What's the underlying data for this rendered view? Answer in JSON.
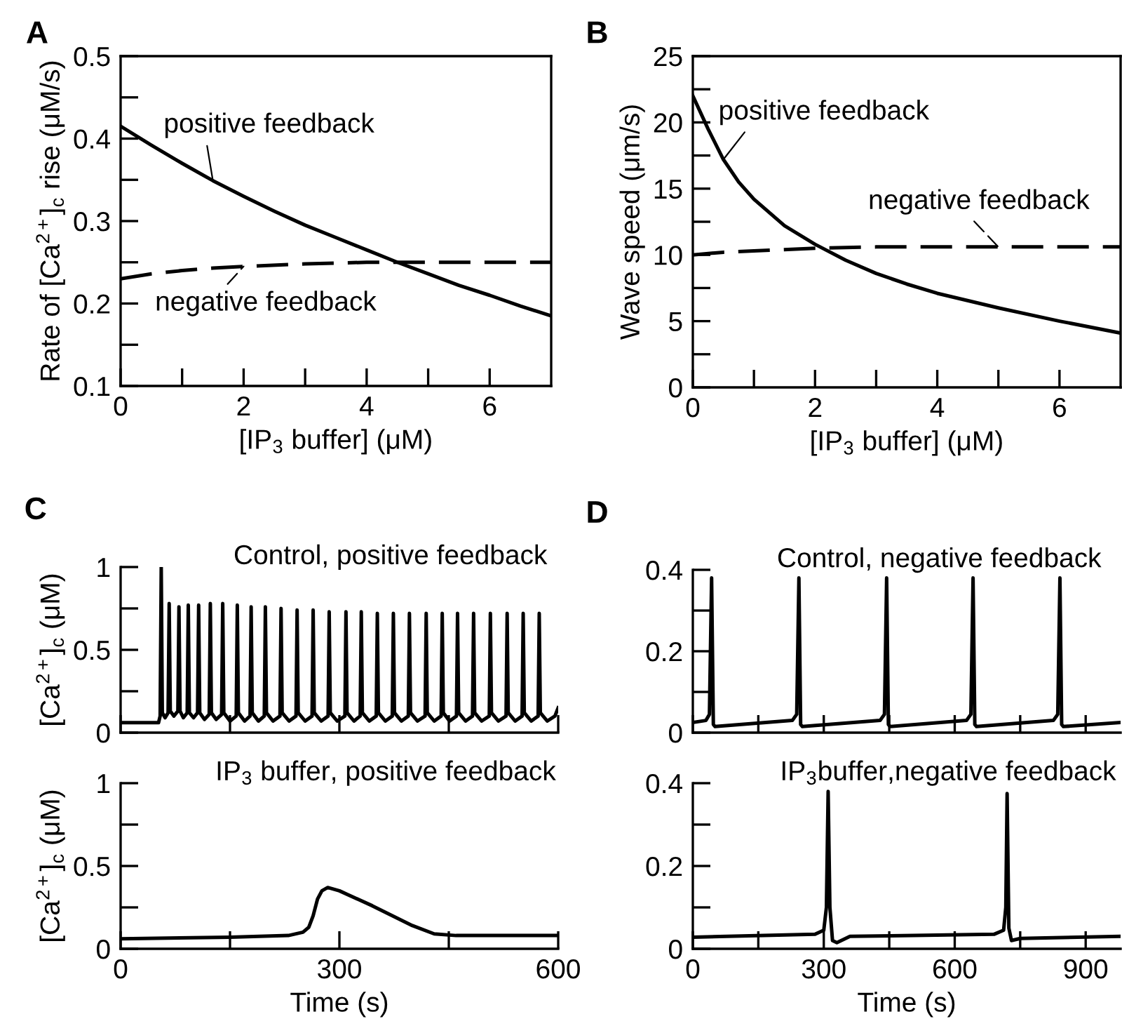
{
  "chart_data": [
    {
      "type": "line",
      "title": "A",
      "xlabel": "[IP$_{3}$ buffer] (μM)",
      "ylabel": "Rate of [Ca$^{2+}$]$_{c}$ rise (μM/s)",
      "xlim": [
        0,
        7
      ],
      "ylim": [
        0.1,
        0.5
      ],
      "xticks": [
        0,
        {
          "value": 1,
          "label": null
        },
        2,
        {
          "value": 3,
          "label": null
        },
        4,
        {
          "value": 5,
          "label": null
        },
        6
      ],
      "yticks": [
        0.1,
        {
          "value": 0.15,
          "label": null
        },
        0.2,
        {
          "value": 0.25,
          "label": null
        },
        0.3,
        {
          "value": 0.35,
          "label": null
        },
        0.4,
        {
          "value": 0.45,
          "label": null
        },
        0.5
      ],
      "series": [
        {
          "name": "positive feedback",
          "color": "#000000",
          "line_style": "solid",
          "x": [
            0,
            0.5,
            1,
            1.5,
            2,
            2.5,
            3,
            3.5,
            4,
            4.5,
            5,
            5.5,
            6,
            6.5,
            7
          ],
          "values": [
            0.415,
            0.392,
            0.37,
            0.349,
            0.33,
            0.312,
            0.295,
            0.28,
            0.265,
            0.25,
            0.236,
            0.222,
            0.21,
            0.197,
            0.185
          ]
        },
        {
          "name": "negative feedback",
          "color": "#000000",
          "line_style": "dashed",
          "x": [
            0,
            0.5,
            1,
            1.5,
            2,
            3,
            4,
            5,
            6,
            7
          ],
          "values": [
            0.23,
            0.236,
            0.24,
            0.243,
            0.245,
            0.248,
            0.25,
            0.25,
            0.25,
            0.25
          ]
        }
      ]
    },
    {
      "type": "line",
      "title": "B",
      "xlabel": "[IP$_{3}$ buffer] (μM)",
      "ylabel": "Wave speed (μm/s)",
      "xlim": [
        0,
        7
      ],
      "ylim": [
        0,
        25
      ],
      "xticks": [
        0,
        {
          "value": 1,
          "label": null
        },
        2,
        {
          "value": 3,
          "label": null
        },
        4,
        {
          "value": 5,
          "label": null
        },
        6
      ],
      "yticks": [
        0,
        {
          "value": 2.5,
          "label": null
        },
        5,
        {
          "value": 7.5,
          "label": null
        },
        10,
        {
          "value": 12.5,
          "label": null
        },
        15,
        {
          "value": 17.5,
          "label": null
        },
        20,
        {
          "value": 22.5,
          "label": null
        },
        25
      ],
      "series": [
        {
          "name": "positive feedback",
          "color": "#000000",
          "line_style": "solid",
          "x": [
            0,
            0.25,
            0.5,
            0.75,
            1,
            1.5,
            2,
            2.5,
            3,
            3.5,
            4,
            5,
            6,
            7
          ],
          "values": [
            22,
            19.5,
            17.2,
            15.5,
            14.2,
            12.2,
            10.8,
            9.6,
            8.6,
            7.8,
            7.1,
            6,
            5,
            4.1
          ]
        },
        {
          "name": "negative feedback",
          "color": "#000000",
          "line_style": "dashed",
          "x": [
            0,
            0.5,
            1,
            2,
            3,
            4,
            5,
            6,
            7
          ],
          "values": [
            10,
            10.2,
            10.3,
            10.5,
            10.6,
            10.6,
            10.6,
            10.6,
            10.6
          ]
        }
      ]
    },
    {
      "type": "line",
      "title": "C",
      "ylabel": "[Ca$^{2+}$]$_{c}$ (μM)",
      "annotations": [
        "Control, positive feedback"
      ],
      "tick_labels": "y",
      "xlim": [
        0,
        600
      ],
      "ylim": [
        0,
        1
      ],
      "xticks": [
        0,
        {
          "value": 150,
          "label": null
        },
        300,
        {
          "value": 450,
          "label": null
        },
        600
      ],
      "yticks": [
        0,
        {
          "value": 0.25,
          "label": null
        },
        0.5,
        {
          "value": 0.75,
          "label": null
        },
        1
      ],
      "series": [
        {
          "color": "#000000",
          "line_style": "solid",
          "x": [
            0,
            52,
            54.2,
            55.7,
            57.2,
            61,
            65.1,
            66.6,
            68.1,
            73,
            78.5,
            80,
            81.5,
            86,
            91.3,
            92.8,
            94.3,
            100,
            105.5,
            107,
            108.5,
            115,
            121.5,
            123,
            124.5,
            131,
            138.5,
            140,
            141.5,
            150,
            158.5,
            160,
            161.5,
            170,
            177.5,
            179,
            180.5,
            189,
            197,
            198.5,
            200,
            209,
            218.5,
            220,
            221.5,
            231,
            240.5,
            242,
            243.5,
            253,
            262.5,
            264,
            265.5,
            275,
            284.5,
            286,
            287.5,
            297,
            307.5,
            309,
            310.5,
            320,
            328.5,
            330,
            331.5,
            341,
            350.5,
            352,
            353.5,
            363,
            372.5,
            374,
            375.5,
            385,
            394.5,
            396,
            397.5,
            407,
            417.5,
            419,
            420.5,
            430,
            439.5,
            441,
            442.5,
            451,
            460.5,
            462,
            463.5,
            473,
            482.5,
            484,
            485.5,
            495,
            505.5,
            507,
            508.5,
            518,
            528.5,
            530,
            531.5,
            541,
            550.5,
            552,
            553.5,
            563,
            572.5,
            574,
            575.5,
            585,
            595.5,
            600
          ],
          "values": [
            0.06,
            0.06,
            0.1,
            1.0,
            0.12,
            0.09,
            0.12,
            0.78,
            0.13,
            0.1,
            0.13,
            0.76,
            0.13,
            0.09,
            0.12,
            0.77,
            0.12,
            0.09,
            0.12,
            0.77,
            0.12,
            0.08,
            0.11,
            0.78,
            0.12,
            0.08,
            0.11,
            0.78,
            0.12,
            0.07,
            0.1,
            0.77,
            0.12,
            0.07,
            0.1,
            0.76,
            0.12,
            0.07,
            0.1,
            0.76,
            0.12,
            0.07,
            0.1,
            0.75,
            0.12,
            0.07,
            0.1,
            0.74,
            0.12,
            0.07,
            0.1,
            0.74,
            0.12,
            0.07,
            0.1,
            0.73,
            0.12,
            0.07,
            0.1,
            0.73,
            0.12,
            0.07,
            0.1,
            0.73,
            0.12,
            0.07,
            0.1,
            0.72,
            0.12,
            0.07,
            0.1,
            0.72,
            0.12,
            0.07,
            0.1,
            0.72,
            0.12,
            0.07,
            0.1,
            0.72,
            0.12,
            0.07,
            0.1,
            0.72,
            0.12,
            0.07,
            0.1,
            0.72,
            0.12,
            0.07,
            0.1,
            0.72,
            0.12,
            0.07,
            0.1,
            0.72,
            0.12,
            0.07,
            0.1,
            0.72,
            0.12,
            0.07,
            0.1,
            0.72,
            0.12,
            0.07,
            0.1,
            0.72,
            0.12,
            0.07,
            0.1,
            0.15
          ]
        }
      ]
    },
    {
      "type": "line",
      "title": "D",
      "annotations": [
        "Control, negative feedback"
      ],
      "tick_labels": "y",
      "xlim": [
        0,
        980
      ],
      "ylim": [
        0,
        0.4
      ],
      "xticks": [
        0,
        {
          "value": 150,
          "label": null
        },
        300,
        {
          "value": 450,
          "label": null
        },
        600,
        {
          "value": 750,
          "label": null
        },
        900
      ],
      "yticks": [
        0,
        {
          "value": 0.1,
          "label": null
        },
        0.2,
        {
          "value": 0.3,
          "label": null
        },
        0.4
      ],
      "series": [
        {
          "color": "#000000",
          "line_style": "solid",
          "x": [
            0,
            30,
            38,
            43,
            47,
            51,
            228,
            238,
            243,
            247,
            251,
            429,
            439,
            444,
            448,
            452,
            627,
            637,
            642,
            646,
            650,
            826,
            836,
            841,
            845,
            849,
            980
          ],
          "values": [
            0.025,
            0.03,
            0.045,
            0.38,
            0.02,
            0.015,
            0.03,
            0.045,
            0.38,
            0.02,
            0.015,
            0.03,
            0.045,
            0.38,
            0.02,
            0.015,
            0.03,
            0.045,
            0.38,
            0.02,
            0.015,
            0.03,
            0.045,
            0.38,
            0.02,
            0.015,
            0.025
          ]
        }
      ]
    },
    {
      "type": "line",
      "xlabel": "Time (s)",
      "ylabel": "[Ca$^{2+}$]$_{c}$ (μM)",
      "annotations": [
        "IP$_{3}$ buffer, positive feedback"
      ],
      "xlim": [
        0,
        600
      ],
      "ylim": [
        0,
        1
      ],
      "xticks": [
        0,
        {
          "value": 150,
          "label": null
        },
        300,
        {
          "value": 450,
          "label": null
        },
        600
      ],
      "yticks": [
        0,
        {
          "value": 0.25,
          "label": null
        },
        0.5,
        {
          "value": 0.75,
          "label": null
        },
        1
      ],
      "series": [
        {
          "color": "#000000",
          "line_style": "solid",
          "x": [
            0,
            150,
            230,
            250,
            258,
            264,
            270,
            276,
            284,
            300,
            345,
            400,
            430,
            460,
            600
          ],
          "values": [
            0.06,
            0.07,
            0.08,
            0.1,
            0.13,
            0.2,
            0.3,
            0.35,
            0.37,
            0.35,
            0.26,
            0.14,
            0.09,
            0.08,
            0.08
          ]
        }
      ]
    },
    {
      "type": "line",
      "xlabel": "Time (s)",
      "annotations": [
        "IP$_{3}$buffer,negative feedback"
      ],
      "xlim": [
        0,
        980
      ],
      "ylim": [
        0,
        0.4
      ],
      "xticks": [
        0,
        {
          "value": 150,
          "label": null
        },
        300,
        {
          "value": 450,
          "label": null
        },
        600,
        {
          "value": 750,
          "label": null
        },
        900
      ],
      "yticks": [
        0,
        {
          "value": 0.1,
          "label": null
        },
        0.2,
        {
          "value": 0.3,
          "label": null
        },
        0.4
      ],
      "series": [
        {
          "color": "#000000",
          "line_style": "solid",
          "x": [
            0,
            280,
            300,
            306,
            310,
            314,
            320,
            330,
            360,
            690,
            712,
            717,
            720,
            724,
            730,
            750,
            980
          ],
          "values": [
            0.028,
            0.035,
            0.045,
            0.1,
            0.38,
            0.1,
            0.02,
            0.015,
            0.03,
            0.035,
            0.045,
            0.1,
            0.375,
            0.05,
            0.02,
            0.025,
            0.03
          ]
        }
      ]
    }
  ]
}
